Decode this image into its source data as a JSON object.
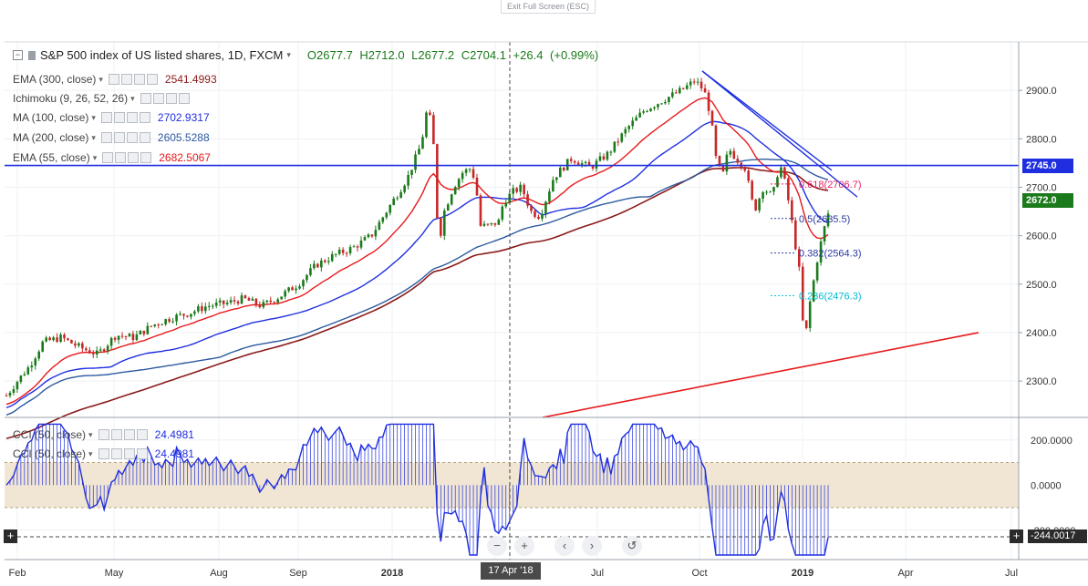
{
  "exit_fullscreen_label": "Exit Full Screen (ESC)",
  "header": {
    "symbol": "S&P 500 index of US listed shares, 1D, FXCM",
    "ohlc": "O2677.7  H2712.0  L2677.2  C2704.1  +26.4 (+0.99%)"
  },
  "indicators": [
    {
      "name": "EMA (300, close)",
      "value": "2541.4993",
      "color": "#8b1a1a"
    },
    {
      "name": "Ichimoku (9, 26, 52, 26)",
      "value": "",
      "color": "#2a9df4"
    },
    {
      "name": "MA (100, close)",
      "value": "2702.9317",
      "color": "#1f2fe0"
    },
    {
      "name": "MA (200, close)",
      "value": "2605.5288",
      "color": "#2d5aa0"
    },
    {
      "name": "EMA (55, close)",
      "value": "2682.5067",
      "color": "#e8191b"
    }
  ],
  "cci_legend": [
    {
      "name": "CCI (50, close)",
      "value": "24.4981"
    },
    {
      "name": "CCI (50, close)",
      "value": "24.4981"
    }
  ],
  "chart_data": [
    {
      "type": "candlestick",
      "title": "S&P 500 index of US listed shares, 1D, FXCM",
      "x_ticks": [
        "Feb",
        "May",
        "Aug",
        "Sep",
        "2018",
        "Apr",
        "Jul",
        "Oct",
        "2019",
        "Apr",
        "Jul"
      ],
      "y_ticks": [
        "2300.0",
        "2400.0",
        "2500.0",
        "2600.0",
        "2700.0",
        "2800.0",
        "2900.0"
      ],
      "ylim": [
        2225,
        3000
      ],
      "price_close_approx": {
        "x": [
          0,
          12,
          25,
          40,
          60,
          80,
          100,
          120,
          140,
          160,
          180,
          200,
          220,
          240,
          260,
          280,
          300,
          320,
          340,
          360,
          380,
          400,
          420,
          440,
          455,
          462,
          468,
          474,
          480,
          490,
          500,
          510,
          515,
          520,
          530,
          540,
          545,
          555,
          565,
          575,
          585,
          600,
          620,
          640,
          660,
          680,
          700,
          720,
          740,
          755,
          765,
          772,
          778,
          785,
          792,
          800,
          810,
          820,
          830,
          840,
          848,
          855,
          862,
          870,
          875,
          880,
          890,
          900,
          912
        ],
        "y": [
          2270,
          2300,
          2330,
          2380,
          2390,
          2370,
          2355,
          2395,
          2390,
          2415,
          2430,
          2440,
          2455,
          2460,
          2470,
          2455,
          2475,
          2500,
          2540,
          2560,
          2575,
          2600,
          2660,
          2720,
          2790,
          2870,
          2800,
          2580,
          2650,
          2700,
          2730,
          2740,
          2700,
          2620,
          2620,
          2630,
          2670,
          2690,
          2700,
          2650,
          2640,
          2720,
          2760,
          2740,
          2770,
          2820,
          2860,
          2880,
          2900,
          2920,
          2900,
          2850,
          2760,
          2720,
          2780,
          2760,
          2740,
          2650,
          2700,
          2680,
          2750,
          2700,
          2620,
          2520,
          2370,
          2450,
          2560,
          2640,
          2704
        ]
      },
      "moving_averages": [
        {
          "name": "EMA (300, close)",
          "value": 2541.4993
        },
        {
          "name": "MA (100, close)",
          "value": 2702.9317
        },
        {
          "name": "MA (200, close)",
          "value": 2605.5288
        },
        {
          "name": "EMA (55, close)",
          "value": 2682.5067
        }
      ],
      "fibonacci_labels": [
        "0.618(2706.7)",
        "0.5(2635.5)",
        "0.382(2564.3)",
        "0.236(2476.3)"
      ],
      "horizontal_line": 2745.0,
      "price_tags": [
        {
          "label": "2745.0",
          "value": 2745.0,
          "color": "#1f2fe0"
        },
        {
          "label": "2672.0",
          "value": 2672.0,
          "color": "#1b7a1b"
        }
      ]
    },
    {
      "type": "line",
      "title": "CCI (50, close)",
      "y_ticks": [
        "-200.0000",
        "0.0000",
        "200.0000"
      ],
      "ylim": [
        -330,
        300
      ],
      "value": 24.4981,
      "band": [
        -100,
        100
      ],
      "crosshair_value": "-244.0017"
    }
  ],
  "crosshair_date": "17 Apr '18",
  "nav_buttons": [
    "−",
    "+",
    "‹",
    "›",
    "↺"
  ]
}
